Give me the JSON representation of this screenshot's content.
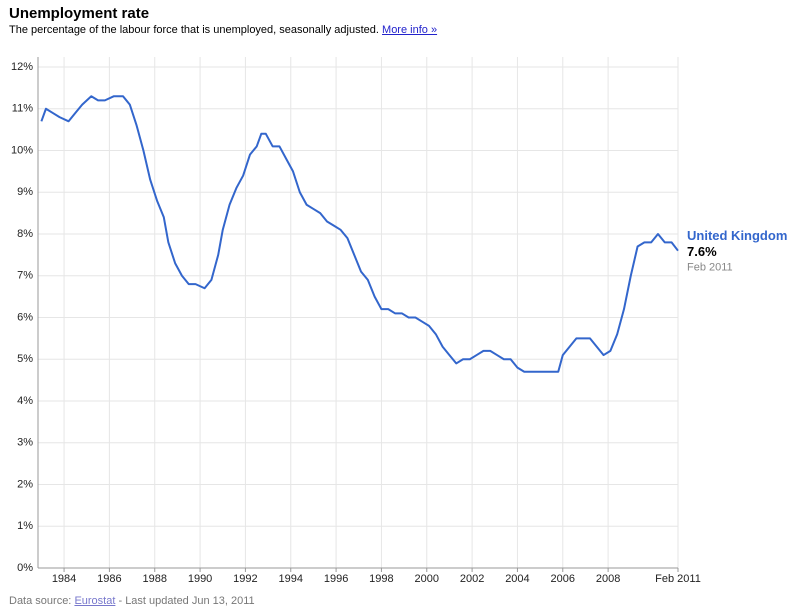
{
  "chart_data": {
    "type": "line",
    "title": "Unemployment rate",
    "subtitle": "The percentage of the labour force that is unemployed, seasonally adjusted.",
    "link_text": "More info »",
    "source_prefix": "Data source:",
    "source": "Eurostat",
    "updated": "- Last updated Jun 13, 2011",
    "grid": true,
    "xlim": [
      1982.85,
      2011.083
    ],
    "xticks": [
      1984,
      1986,
      1988,
      1990,
      1992,
      1994,
      1996,
      1998,
      2000,
      2002,
      2004,
      2006,
      2008,
      {
        "value": 2011.083,
        "label": "Feb 2011"
      }
    ],
    "ylim": [
      0,
      12
    ],
    "yticks": [
      {
        "value": 0,
        "label": "0%"
      },
      {
        "value": 1,
        "label": "1%"
      },
      {
        "value": 2,
        "label": "2%"
      },
      {
        "value": 3,
        "label": "3%"
      },
      {
        "value": 4,
        "label": "4%"
      },
      {
        "value": 5,
        "label": "5%"
      },
      {
        "value": 6,
        "label": "6%"
      },
      {
        "value": 7,
        "label": "7%"
      },
      {
        "value": 8,
        "label": "8%"
      },
      {
        "value": 9,
        "label": "9%"
      },
      {
        "value": 10,
        "label": "10%"
      },
      {
        "value": 11,
        "label": "11%"
      },
      {
        "value": 12,
        "label": "12%"
      }
    ],
    "x": [
      1983.0,
      1983.2,
      1983.5,
      1983.8,
      1984.2,
      1984.5,
      1984.8,
      1985.2,
      1985.5,
      1985.8,
      1986.2,
      1986.6,
      1986.9,
      1987.2,
      1987.5,
      1987.8,
      1988.1,
      1988.4,
      1988.6,
      1988.9,
      1989.2,
      1989.5,
      1989.8,
      1990.2,
      1990.5,
      1990.8,
      1991.0,
      1991.3,
      1991.6,
      1991.9,
      1992.2,
      1992.5,
      1992.7,
      1992.9,
      1993.2,
      1993.5,
      1993.8,
      1994.1,
      1994.4,
      1994.7,
      1995.0,
      1995.3,
      1995.6,
      1995.9,
      1996.2,
      1996.5,
      1996.8,
      1997.1,
      1997.4,
      1997.7,
      1998.0,
      1998.3,
      1998.6,
      1998.9,
      1999.2,
      1999.5,
      1999.8,
      2000.1,
      2000.4,
      2000.7,
      2001.0,
      2001.3,
      2001.6,
      2001.9,
      2002.2,
      2002.5,
      2002.8,
      2003.1,
      2003.4,
      2003.7,
      2004.0,
      2004.3,
      2004.6,
      2004.9,
      2005.2,
      2005.5,
      2005.8,
      2006.0,
      2006.3,
      2006.6,
      2006.9,
      2007.2,
      2007.5,
      2007.8,
      2008.1,
      2008.4,
      2008.7,
      2009.0,
      2009.3,
      2009.6,
      2009.9,
      2010.2,
      2010.5,
      2010.8,
      2011.083
    ],
    "series": [
      {
        "name": "United Kingdom",
        "color": "#3366cc",
        "last_value_label": "7.6%",
        "last_date": "Feb 2011",
        "values": [
          10.7,
          11.0,
          10.9,
          10.8,
          10.7,
          10.9,
          11.1,
          11.3,
          11.2,
          11.2,
          11.3,
          11.3,
          11.1,
          10.6,
          10.0,
          9.3,
          8.8,
          8.4,
          7.8,
          7.3,
          7.0,
          6.8,
          6.8,
          6.7,
          6.9,
          7.5,
          8.1,
          8.7,
          9.1,
          9.4,
          9.9,
          10.1,
          10.4,
          10.4,
          10.1,
          10.1,
          9.8,
          9.5,
          9.0,
          8.7,
          8.6,
          8.5,
          8.3,
          8.2,
          8.1,
          7.9,
          7.5,
          7.1,
          6.9,
          6.5,
          6.2,
          6.2,
          6.1,
          6.1,
          6.0,
          6.0,
          5.9,
          5.8,
          5.6,
          5.3,
          5.1,
          4.9,
          5.0,
          5.0,
          5.1,
          5.2,
          5.2,
          5.1,
          5.0,
          5.0,
          4.8,
          4.7,
          4.7,
          4.7,
          4.7,
          4.7,
          4.7,
          5.1,
          5.3,
          5.5,
          5.5,
          5.5,
          5.3,
          5.1,
          5.2,
          5.6,
          6.2,
          7.0,
          7.7,
          7.8,
          7.8,
          8.0,
          7.8,
          7.8,
          7.6
        ]
      }
    ]
  }
}
